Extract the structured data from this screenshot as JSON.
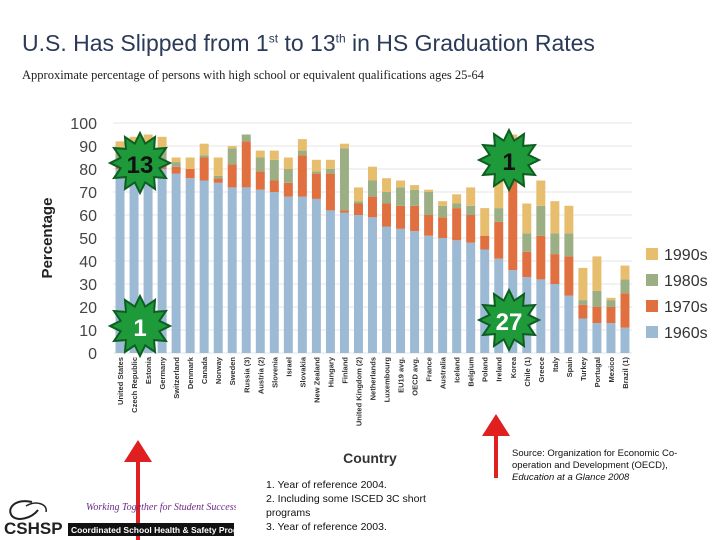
{
  "title": {
    "main": "U.S. Has Slipped from 1",
    "sup1": "st",
    "mid": " to 13",
    "sup2": "th",
    "end": " in HS Graduation Rates"
  },
  "subtitle": "Approximate percentage of persons with high school or equivalent qualifications ages 25-64",
  "chart_data": {
    "type": "bar",
    "stacked": true,
    "ylabel": "Percentage",
    "xlabel": "Country",
    "ylim": [
      0,
      100
    ],
    "yticks": [
      0,
      10,
      20,
      30,
      40,
      50,
      60,
      70,
      80,
      90,
      100
    ],
    "categories": [
      "United States",
      "Czech Republic",
      "Estonia",
      "Germany",
      "Switzerland",
      "Denmark",
      "Canada",
      "Norway",
      "Sweden",
      "Russia (3)",
      "Austria (2)",
      "Slovenia",
      "Israel",
      "Slovakia",
      "New Zealand",
      "Hungary",
      "Finland",
      "United Kingdom (2)",
      "Netherlands",
      "Luxembourg",
      "EU19 avg.",
      "OECD avg.",
      "France",
      "Australia",
      "Iceland",
      "Belgium",
      "Poland",
      "Ireland",
      "Korea",
      "Chile (1)",
      "Greece",
      "Italy",
      "Spain",
      "Turkey",
      "Portugal",
      "Mexico",
      "Brazil (1)"
    ],
    "series": [
      {
        "name": "1960s",
        "color": "#9dbad5",
        "values": [
          80,
          78,
          80,
          80,
          78,
          76,
          75,
          74,
          72,
          72,
          71,
          70,
          68,
          68,
          67,
          62,
          61,
          60,
          59,
          55,
          54,
          53,
          51,
          50,
          49,
          48,
          45,
          41,
          36,
          33,
          32,
          30,
          25,
          15,
          13,
          13,
          11
        ]
      },
      {
        "name": "1970s",
        "color": "#e07040",
        "values": [
          4,
          4,
          3,
          3,
          3,
          4,
          10,
          2,
          10,
          20,
          8,
          5,
          6,
          18,
          11,
          16,
          1,
          5,
          9,
          10,
          10,
          11,
          9,
          9,
          14,
          12,
          6,
          16,
          46,
          11,
          19,
          13,
          17,
          6,
          7,
          7,
          15
        ]
      },
      {
        "name": "1980s",
        "color": "#9caf84",
        "values": [
          4,
          4,
          8,
          6,
          2,
          0,
          1,
          1,
          7,
          3,
          6,
          9,
          6,
          2,
          1,
          2,
          27,
          1,
          7,
          5,
          8,
          7,
          10,
          5,
          2,
          4,
          0,
          6,
          1,
          8,
          13,
          9,
          10,
          2,
          7,
          3,
          6
        ]
      },
      {
        "name": "1990s",
        "color": "#e7bd6e",
        "values": [
          4,
          8,
          4,
          5,
          2,
          5,
          5,
          8,
          1,
          0,
          3,
          4,
          5,
          5,
          5,
          4,
          2,
          6,
          6,
          6,
          3,
          2,
          1,
          2,
          4,
          8,
          12,
          12,
          12,
          13,
          11,
          14,
          12,
          14,
          15,
          1,
          6
        ]
      }
    ]
  },
  "callouts": [
    {
      "label": "13",
      "name": "burst-badge-13"
    },
    {
      "label": "1",
      "name": "burst-badge-1-top"
    },
    {
      "label": "1",
      "name": "burst-badge-1-bottom"
    },
    {
      "label": "27",
      "name": "burst-badge-27"
    }
  ],
  "colors": {
    "arrow": "#e02020",
    "badge": "#1f9a3a",
    "badge_stroke": "#0d5e20",
    "title": "#2b3a58"
  },
  "notes": [
    "1.  Year of reference 2004.",
    "2.  Including some ISCED 3C short",
    "     programs",
    "3.  Year of reference 2003."
  ],
  "source": {
    "text": "Source:  Organization for Economic Co-operation and Development (OECD),",
    "italic": "Education at a Glance 2008"
  },
  "logo": {
    "abbr": "CSHSP",
    "tagline": "Working Together for Student Success",
    "full": "Coordinated School Health & Safety Programs"
  }
}
